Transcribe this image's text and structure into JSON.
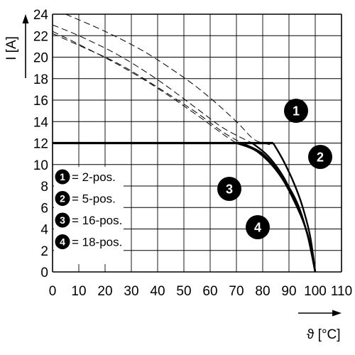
{
  "chart_data": {
    "type": "line",
    "title": "",
    "ylabel": "I [A]",
    "xlabel": "ϑ [°C]",
    "xlim": [
      0,
      110
    ],
    "ylim": [
      0,
      24
    ],
    "x_ticks": [
      0,
      10,
      20,
      30,
      40,
      50,
      60,
      70,
      80,
      90,
      100,
      110
    ],
    "y_ticks": [
      0,
      2,
      4,
      6,
      8,
      10,
      12,
      14,
      16,
      18,
      20,
      22,
      24
    ],
    "x_tick_labels": [
      "0",
      "10",
      "20",
      "30",
      "40",
      "50",
      "60",
      "70",
      "80",
      "90",
      "100",
      "110"
    ],
    "y_tick_labels": [
      "0",
      "2",
      "4",
      "6",
      "8",
      "10",
      "12",
      "14",
      "16",
      "18",
      "20",
      "22",
      "24"
    ],
    "grid": true,
    "legend_position": "bottom-left",
    "legend": [
      {
        "marker": "1",
        "text": "= 2-pos."
      },
      {
        "marker": "2",
        "text": "= 5-pos."
      },
      {
        "marker": "3",
        "text": "= 16-pos."
      },
      {
        "marker": "4",
        "text": "= 18-pos."
      }
    ],
    "current_limit": {
      "y": 12,
      "x": [
        0,
        84
      ]
    },
    "series": [
      {
        "marker": "1",
        "dashed": {
          "x": [
            5,
            20,
            35,
            50,
            60,
            70,
            77,
            84
          ],
          "y": [
            24,
            22.4,
            20.5,
            18.1,
            16.2,
            14,
            12.3,
            11.8
          ]
        },
        "solid": {
          "x": [
            84,
            88,
            92,
            95,
            98,
            100
          ],
          "y": [
            12,
            10.3,
            8.2,
            6.2,
            3.4,
            0
          ]
        }
      },
      {
        "marker": "2",
        "dashed": {
          "x": [
            0,
            10,
            25,
            40,
            55,
            65,
            76
          ],
          "y": [
            23,
            22,
            20.2,
            17.9,
            15.2,
            13.4,
            12
          ]
        },
        "solid": {
          "x": [
            76,
            82,
            88,
            93,
            97,
            100
          ],
          "y": [
            12,
            10.8,
            8.8,
            6.2,
            3.5,
            0
          ]
        }
      },
      {
        "marker": "3",
        "dashed": {
          "x": [
            0,
            10,
            25,
            40,
            55,
            65,
            70
          ],
          "y": [
            22.4,
            21.2,
            19.3,
            17.1,
            14.6,
            12.8,
            12
          ]
        },
        "solid": {
          "x": [
            70,
            78,
            86,
            92,
            97,
            100
          ],
          "y": [
            12,
            11.2,
            9.2,
            6.6,
            3.6,
            0
          ]
        }
      },
      {
        "marker": "4",
        "dashed": {
          "x": [
            0,
            10,
            25,
            40,
            55,
            65,
            72
          ],
          "y": [
            22.2,
            21.1,
            19.4,
            17.2,
            14.8,
            13,
            12
          ]
        },
        "solid": {
          "x": [
            72,
            80,
            87,
            93,
            97,
            100
          ],
          "y": [
            12,
            11,
            9,
            6.5,
            3.5,
            0
          ]
        }
      }
    ],
    "callouts": [
      {
        "marker": "1",
        "anchor": {
          "x": 91,
          "y": 14
        }
      },
      {
        "marker": "2",
        "anchor": {
          "x": 103,
          "y": 10.6
        }
      },
      {
        "marker": "3",
        "anchor": {
          "x": 67.5,
          "y": 7.8
        }
      },
      {
        "marker": "4",
        "anchor": {
          "x": 78,
          "y": 4.3
        }
      }
    ]
  }
}
